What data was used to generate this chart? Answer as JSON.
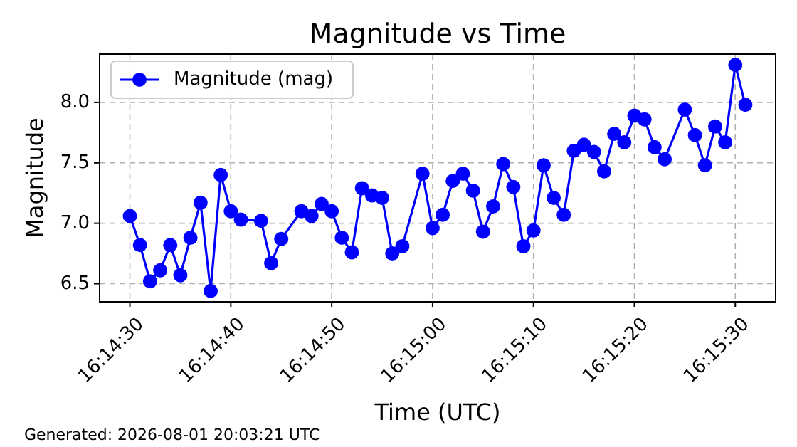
{
  "chart_data": {
    "type": "line",
    "title": "Magnitude vs Time",
    "xlabel": "Time (UTC)",
    "ylabel": "Magnitude",
    "x": [
      "2026-08-01T16:14:30",
      "2026-08-01T16:14:31",
      "2026-08-01T16:14:32",
      "2026-08-01T16:14:33",
      "2026-08-01T16:14:34",
      "2026-08-01T16:14:35",
      "2026-08-01T16:14:36",
      "2026-08-01T16:14:37",
      "2026-08-01T16:14:38",
      "2026-08-01T16:14:39",
      "2026-08-01T16:14:40",
      "2026-08-01T16:14:41",
      "2026-08-01T16:14:43",
      "2026-08-01T16:14:44",
      "2026-08-01T16:14:45",
      "2026-08-01T16:14:47",
      "2026-08-01T16:14:48",
      "2026-08-01T16:14:49",
      "2026-08-01T16:14:50",
      "2026-08-01T16:14:51",
      "2026-08-01T16:14:52",
      "2026-08-01T16:14:53",
      "2026-08-01T16:14:54",
      "2026-08-01T16:14:55",
      "2026-08-01T16:14:56",
      "2026-08-01T16:14:57",
      "2026-08-01T16:14:59",
      "2026-08-01T16:15:00",
      "2026-08-01T16:15:01",
      "2026-08-01T16:15:02",
      "2026-08-01T16:15:03",
      "2026-08-01T16:15:04",
      "2026-08-01T16:15:05",
      "2026-08-01T16:15:06",
      "2026-08-01T16:15:07",
      "2026-08-01T16:15:08",
      "2026-08-01T16:15:09",
      "2026-08-01T16:15:10",
      "2026-08-01T16:15:11",
      "2026-08-01T16:15:12",
      "2026-08-01T16:15:13",
      "2026-08-01T16:15:14",
      "2026-08-01T16:15:15",
      "2026-08-01T16:15:16",
      "2026-08-01T16:15:17",
      "2026-08-01T16:15:18",
      "2026-08-01T16:15:19",
      "2026-08-01T16:15:20",
      "2026-08-01T16:15:21",
      "2026-08-01T16:15:22",
      "2026-08-01T16:15:23",
      "2026-08-01T16:15:25",
      "2026-08-01T16:15:26",
      "2026-08-01T16:15:27",
      "2026-08-01T16:15:28",
      "2026-08-01T16:15:29",
      "2026-08-01T16:15:30",
      "2026-08-01T16:15:31"
    ],
    "series": [
      {
        "name": "Magnitude (mag)",
        "color": "#0000ff",
        "values": [
          7.06,
          6.82,
          6.52,
          6.61,
          6.82,
          6.57,
          6.88,
          7.17,
          6.44,
          7.4,
          7.1,
          7.03,
          7.02,
          6.67,
          6.87,
          7.1,
          7.06,
          7.16,
          7.1,
          6.88,
          6.76,
          7.29,
          7.23,
          7.21,
          6.75,
          6.81,
          7.41,
          6.96,
          7.07,
          7.35,
          7.41,
          7.27,
          6.93,
          7.14,
          7.49,
          7.3,
          6.81,
          6.94,
          7.48,
          7.21,
          7.07,
          7.6,
          7.65,
          7.59,
          7.43,
          7.74,
          7.67,
          7.89,
          7.86,
          7.63,
          7.53,
          7.94,
          7.73,
          7.48,
          7.8,
          7.67,
          8.31,
          7.98
        ]
      }
    ],
    "xlim": [
      "2026-08-01T16:14:27",
      "2026-08-01T16:15:34"
    ],
    "xticks": [
      {
        "value": "2026-08-01T16:14:30",
        "label": "16:14:30"
      },
      {
        "value": "2026-08-01T16:14:40",
        "label": "16:14:40"
      },
      {
        "value": "2026-08-01T16:14:50",
        "label": "16:14:50"
      },
      {
        "value": "2026-08-01T16:15:00",
        "label": "16:15:00"
      },
      {
        "value": "2026-08-01T16:15:10",
        "label": "16:15:10"
      },
      {
        "value": "2026-08-01T16:15:20",
        "label": "16:15:20"
      },
      {
        "value": "2026-08-01T16:15:30",
        "label": "16:15:30"
      }
    ],
    "ylim": [
      6.35,
      8.4
    ],
    "yticks": [
      {
        "value": 6.5,
        "label": "6.5"
      },
      {
        "value": 7,
        "label": "7.0"
      },
      {
        "value": 7.5,
        "label": "7.5"
      },
      {
        "value": 8,
        "label": "8.0"
      }
    ],
    "grid": true,
    "legend": "top left",
    "marker": "circle",
    "line_style": "solid",
    "annotations": [
      "Generated: 2026-08-01 20:03:21 UTC"
    ]
  }
}
